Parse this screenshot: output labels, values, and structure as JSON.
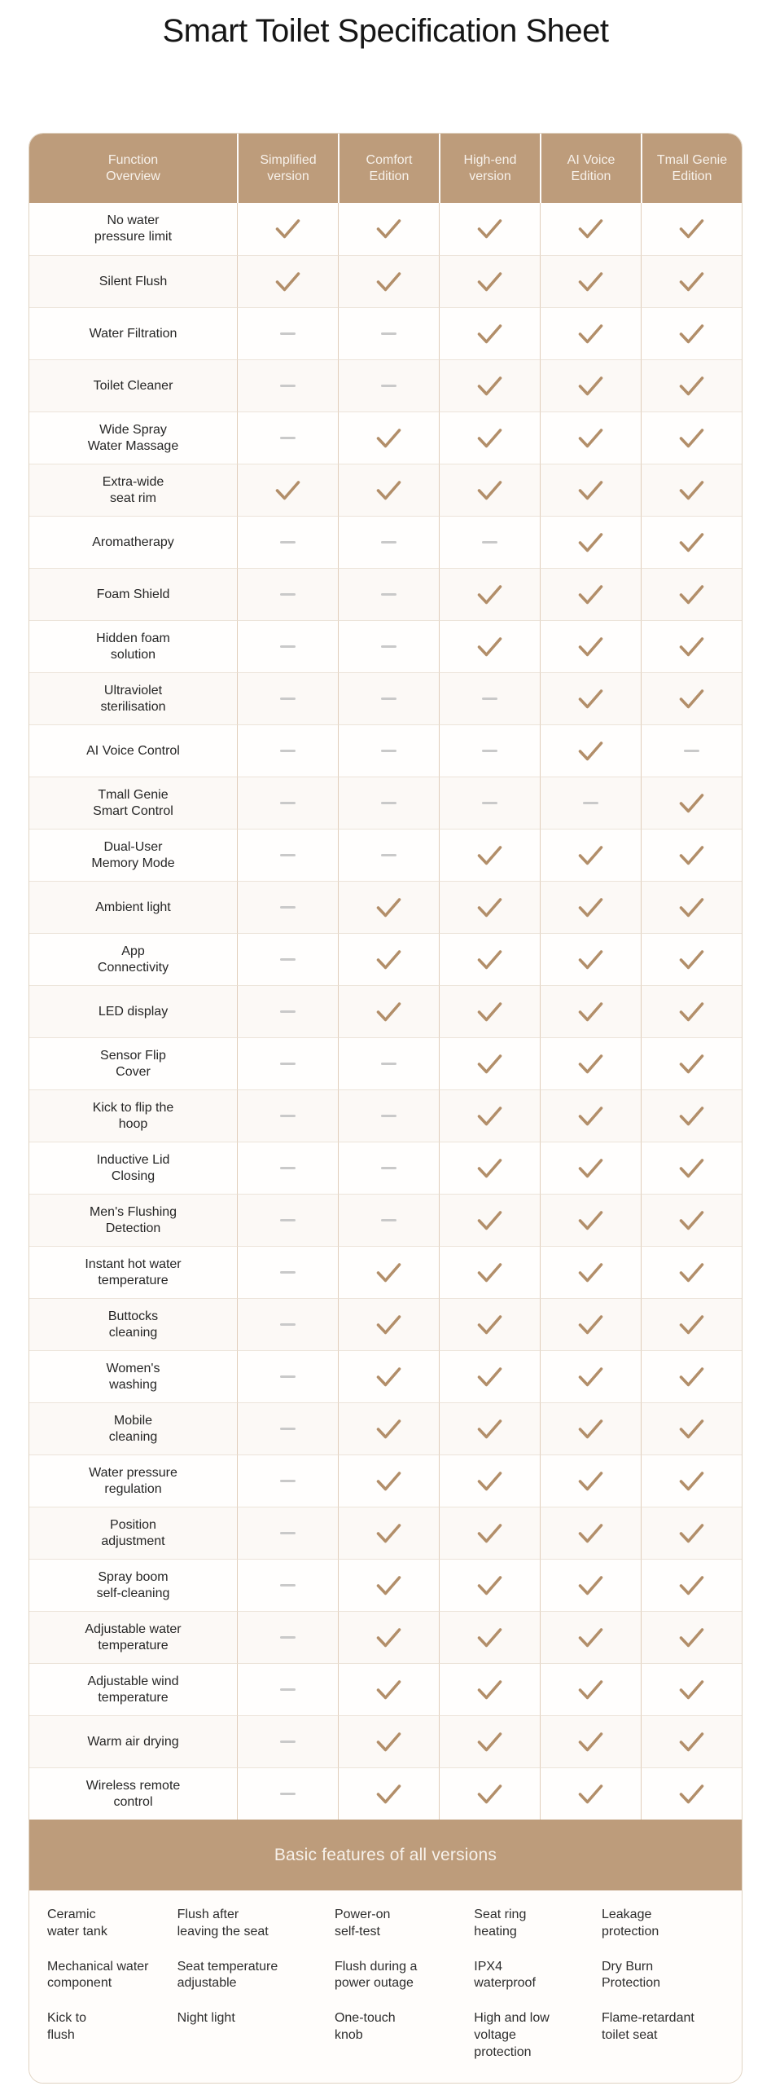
{
  "title": "Smart Toilet Specification Sheet",
  "colors": {
    "accent_tan": "#bd9c7b",
    "check": "#b28e69",
    "dash": "#c9c9c9",
    "header_text": "#f7f1ea"
  },
  "table": {
    "columns": [
      "Function\nOverview",
      "Simplified\nversion",
      "Comfort\nEdition",
      "High-end\nversion",
      "AI Voice\nEdition",
      "Tmall Genie\nEdition"
    ],
    "rows": [
      {
        "feature": "No water\npressure limit",
        "values": [
          "check",
          "check",
          "check",
          "check",
          "check"
        ]
      },
      {
        "feature": "Silent Flush",
        "values": [
          "check",
          "check",
          "check",
          "check",
          "check"
        ]
      },
      {
        "feature": "Water Filtration",
        "values": [
          "dash",
          "dash",
          "check",
          "check",
          "check"
        ]
      },
      {
        "feature": "Toilet Cleaner",
        "values": [
          "dash",
          "dash",
          "check",
          "check",
          "check"
        ]
      },
      {
        "feature": "Wide Spray\nWater Massage",
        "values": [
          "dash",
          "check",
          "check",
          "check",
          "check"
        ]
      },
      {
        "feature": "Extra-wide\nseat rim",
        "values": [
          "check",
          "check",
          "check",
          "check",
          "check"
        ]
      },
      {
        "feature": "Aromatherapy",
        "values": [
          "dash",
          "dash",
          "dash",
          "check",
          "check"
        ]
      },
      {
        "feature": "Foam Shield",
        "values": [
          "dash",
          "dash",
          "check",
          "check",
          "check"
        ]
      },
      {
        "feature": "Hidden foam\nsolution",
        "values": [
          "dash",
          "dash",
          "check",
          "check",
          "check"
        ]
      },
      {
        "feature": "Ultraviolet\nsterilisation",
        "values": [
          "dash",
          "dash",
          "dash",
          "check",
          "check"
        ]
      },
      {
        "feature": "AI Voice Control",
        "values": [
          "dash",
          "dash",
          "dash",
          "check",
          "dash"
        ]
      },
      {
        "feature": "Tmall Genie\nSmart Control",
        "values": [
          "dash",
          "dash",
          "dash",
          "dash",
          "check"
        ]
      },
      {
        "feature": "Dual-User\nMemory Mode",
        "values": [
          "dash",
          "dash",
          "check",
          "check",
          "check"
        ]
      },
      {
        "feature": "Ambient light",
        "values": [
          "dash",
          "check",
          "check",
          "check",
          "check"
        ]
      },
      {
        "feature": "App\nConnectivity",
        "values": [
          "dash",
          "check",
          "check",
          "check",
          "check"
        ]
      },
      {
        "feature": "LED display",
        "values": [
          "dash",
          "check",
          "check",
          "check",
          "check"
        ]
      },
      {
        "feature": "Sensor Flip\nCover",
        "values": [
          "dash",
          "dash",
          "check",
          "check",
          "check"
        ]
      },
      {
        "feature": "Kick to flip the\nhoop",
        "values": [
          "dash",
          "dash",
          "check",
          "check",
          "check"
        ]
      },
      {
        "feature": "Inductive Lid\nClosing",
        "values": [
          "dash",
          "dash",
          "check",
          "check",
          "check"
        ]
      },
      {
        "feature": "Men's Flushing\nDetection",
        "values": [
          "dash",
          "dash",
          "check",
          "check",
          "check"
        ]
      },
      {
        "feature": "Instant hot water\ntemperature",
        "values": [
          "dash",
          "check",
          "check",
          "check",
          "check"
        ]
      },
      {
        "feature": "Buttocks\ncleaning",
        "values": [
          "dash",
          "check",
          "check",
          "check",
          "check"
        ]
      },
      {
        "feature": "Women's\nwashing",
        "values": [
          "dash",
          "check",
          "check",
          "check",
          "check"
        ]
      },
      {
        "feature": "Mobile\ncleaning",
        "values": [
          "dash",
          "check",
          "check",
          "check",
          "check"
        ]
      },
      {
        "feature": "Water pressure\nregulation",
        "values": [
          "dash",
          "check",
          "check",
          "check",
          "check"
        ]
      },
      {
        "feature": "Position\nadjustment",
        "values": [
          "dash",
          "check",
          "check",
          "check",
          "check"
        ]
      },
      {
        "feature": "Spray boom\nself-cleaning",
        "values": [
          "dash",
          "check",
          "check",
          "check",
          "check"
        ]
      },
      {
        "feature": "Adjustable water\ntemperature",
        "values": [
          "dash",
          "check",
          "check",
          "check",
          "check"
        ]
      },
      {
        "feature": "Adjustable wind\ntemperature",
        "values": [
          "dash",
          "check",
          "check",
          "check",
          "check"
        ]
      },
      {
        "feature": "Warm air drying",
        "values": [
          "dash",
          "check",
          "check",
          "check",
          "check"
        ]
      },
      {
        "feature": "Wireless remote\ncontrol",
        "values": [
          "dash",
          "check",
          "check",
          "check",
          "check"
        ]
      }
    ]
  },
  "basic_section": {
    "title": "Basic features of all versions",
    "items": [
      "Ceramic\nwater tank",
      "Flush after\nleaving the seat",
      "Power-on\nself-test",
      "Seat ring\nheating",
      "Leakage\nprotection",
      "Mechanical water\ncomponent",
      "Seat temperature\nadjustable",
      "Flush during a\npower outage",
      "IPX4\nwaterproof",
      "Dry Burn\nProtection",
      "Kick to\nflush",
      "Night light",
      "One-touch\nknob",
      "High and low\nvoltage\nprotection",
      "Flame-retardant\ntoilet seat"
    ]
  }
}
